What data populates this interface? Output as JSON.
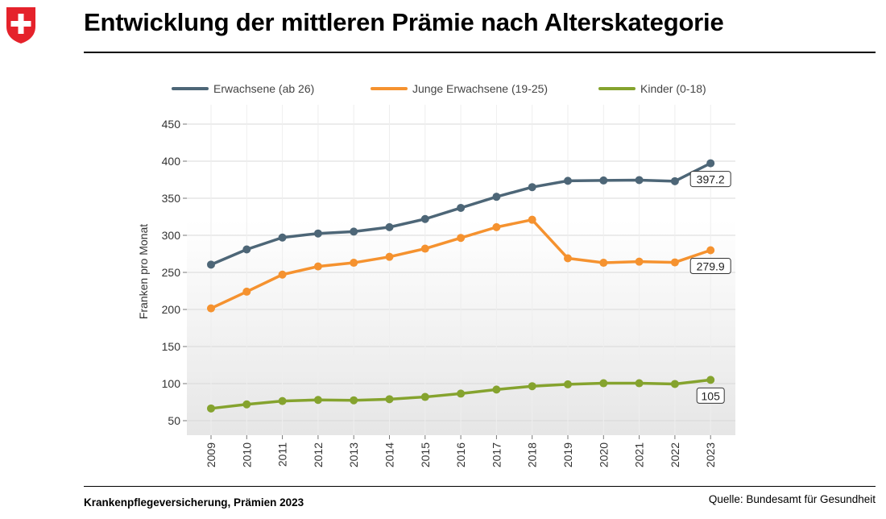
{
  "header": {
    "title": "Entwicklung der mittleren Prämie nach Alterskategorie"
  },
  "footer": {
    "left": "Krankenpflegeversicherung, Prämien 2023",
    "right": "Quelle: Bundesamt für Gesundheit"
  },
  "chart_data": {
    "type": "line",
    "title": "Entwicklung der mittleren Prämie nach Alterskategorie",
    "xlabel": "",
    "ylabel": "Franken pro Monat",
    "ylim": [
      30,
      450
    ],
    "yticks": [
      50,
      100,
      150,
      200,
      250,
      300,
      350,
      400,
      450
    ],
    "grid": true,
    "legend_position": "top",
    "categories": [
      "2009",
      "2010",
      "2011",
      "2012",
      "2013",
      "2014",
      "2015",
      "2016",
      "2017",
      "2018",
      "2019",
      "2020",
      "2021",
      "2022",
      "2023"
    ],
    "series": [
      {
        "name": "Erwachsene (ab 26)",
        "color": "#4d6677",
        "values": [
          260.5,
          281,
          297,
          302.5,
          305,
          311,
          322,
          337,
          352,
          365,
          373.5,
          374,
          374.5,
          373,
          397.2
        ],
        "end_label": "397.2"
      },
      {
        "name": "Junge Erwachsene (19-25)",
        "color": "#f5922f",
        "values": [
          201.5,
          224,
          247,
          258,
          263,
          271,
          282,
          296.5,
          311,
          321,
          269,
          263,
          264.5,
          263.5,
          279.9
        ],
        "end_label": "279.9"
      },
      {
        "name": "Kinder (0-18)",
        "color": "#85a32e",
        "values": [
          66.5,
          72,
          76.5,
          78,
          77.5,
          79,
          82,
          86.5,
          92,
          96.5,
          99,
          100.5,
          100.5,
          99.5,
          105
        ],
        "end_label": "105"
      }
    ]
  }
}
